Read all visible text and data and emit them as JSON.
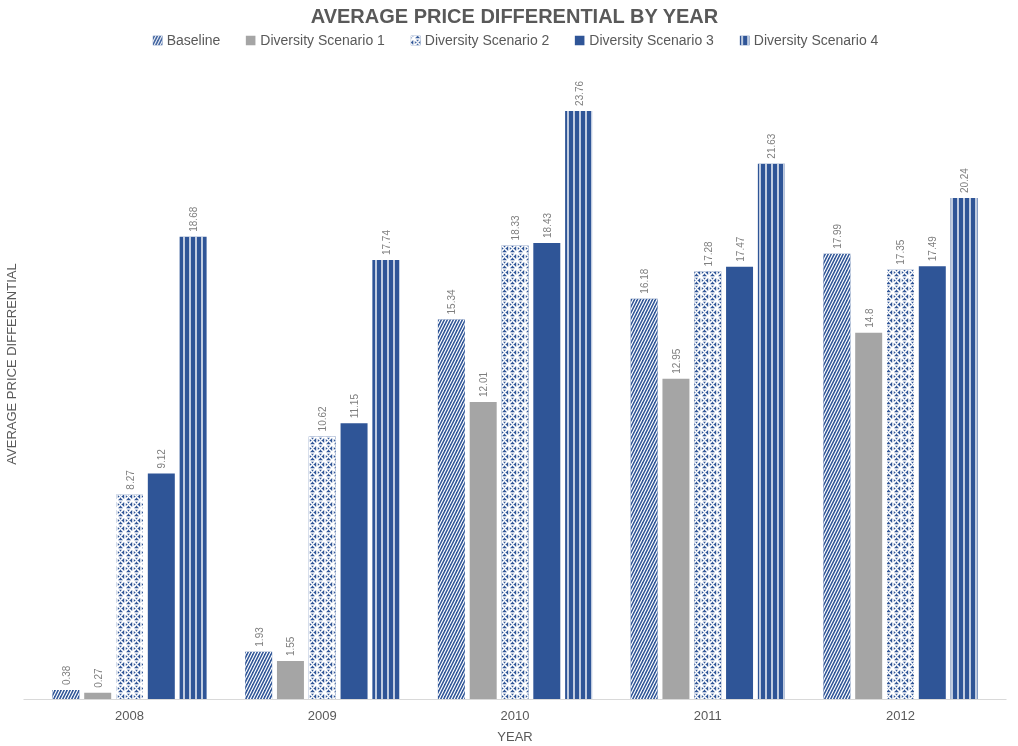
{
  "chart_data": {
    "type": "bar",
    "title": "AVERAGE PRICE DIFFERENTIAL BY YEAR",
    "xlabel": "YEAR",
    "ylabel": "AVERAGE PRICE DIFFERENTIAL",
    "categories": [
      "2008",
      "2009",
      "2010",
      "2011",
      "2012"
    ],
    "series": [
      {
        "name": "Baseline",
        "color": "#2f5597",
        "values": [
          0.38,
          1.93,
          15.34,
          16.18,
          17.99
        ]
      },
      {
        "name": "Diversity Scenario 1",
        "color": "#a5a5a5",
        "values": [
          0.27,
          1.55,
          12.01,
          12.95,
          14.8
        ]
      },
      {
        "name": "Diversity Scenario 2",
        "color": "#2f5597",
        "values": [
          8.27,
          10.62,
          18.33,
          17.28,
          17.35
        ]
      },
      {
        "name": "Diversity Scenario 3",
        "color": "#2f5597",
        "values": [
          9.12,
          11.15,
          18.43,
          17.47,
          17.49
        ]
      },
      {
        "name": "Diversity Scenario 4",
        "color": "#2f5597",
        "values": [
          18.68,
          17.74,
          23.76,
          21.63,
          20.24
        ]
      }
    ],
    "data_labels": true,
    "legend": "top"
  }
}
